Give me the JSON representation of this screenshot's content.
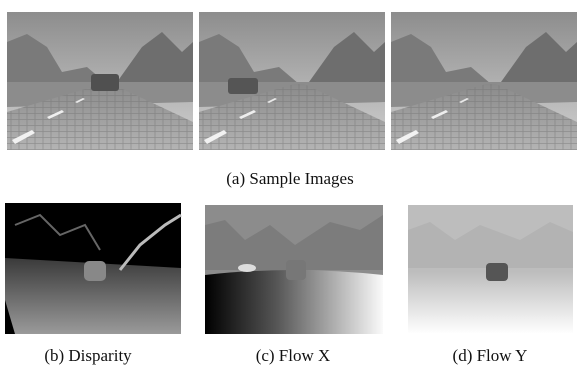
{
  "figure": {
    "captions": [
      "(a) Sample Images",
      "(b) Disparity",
      "(c) Flow X",
      "(d) Flow Y"
    ]
  }
}
